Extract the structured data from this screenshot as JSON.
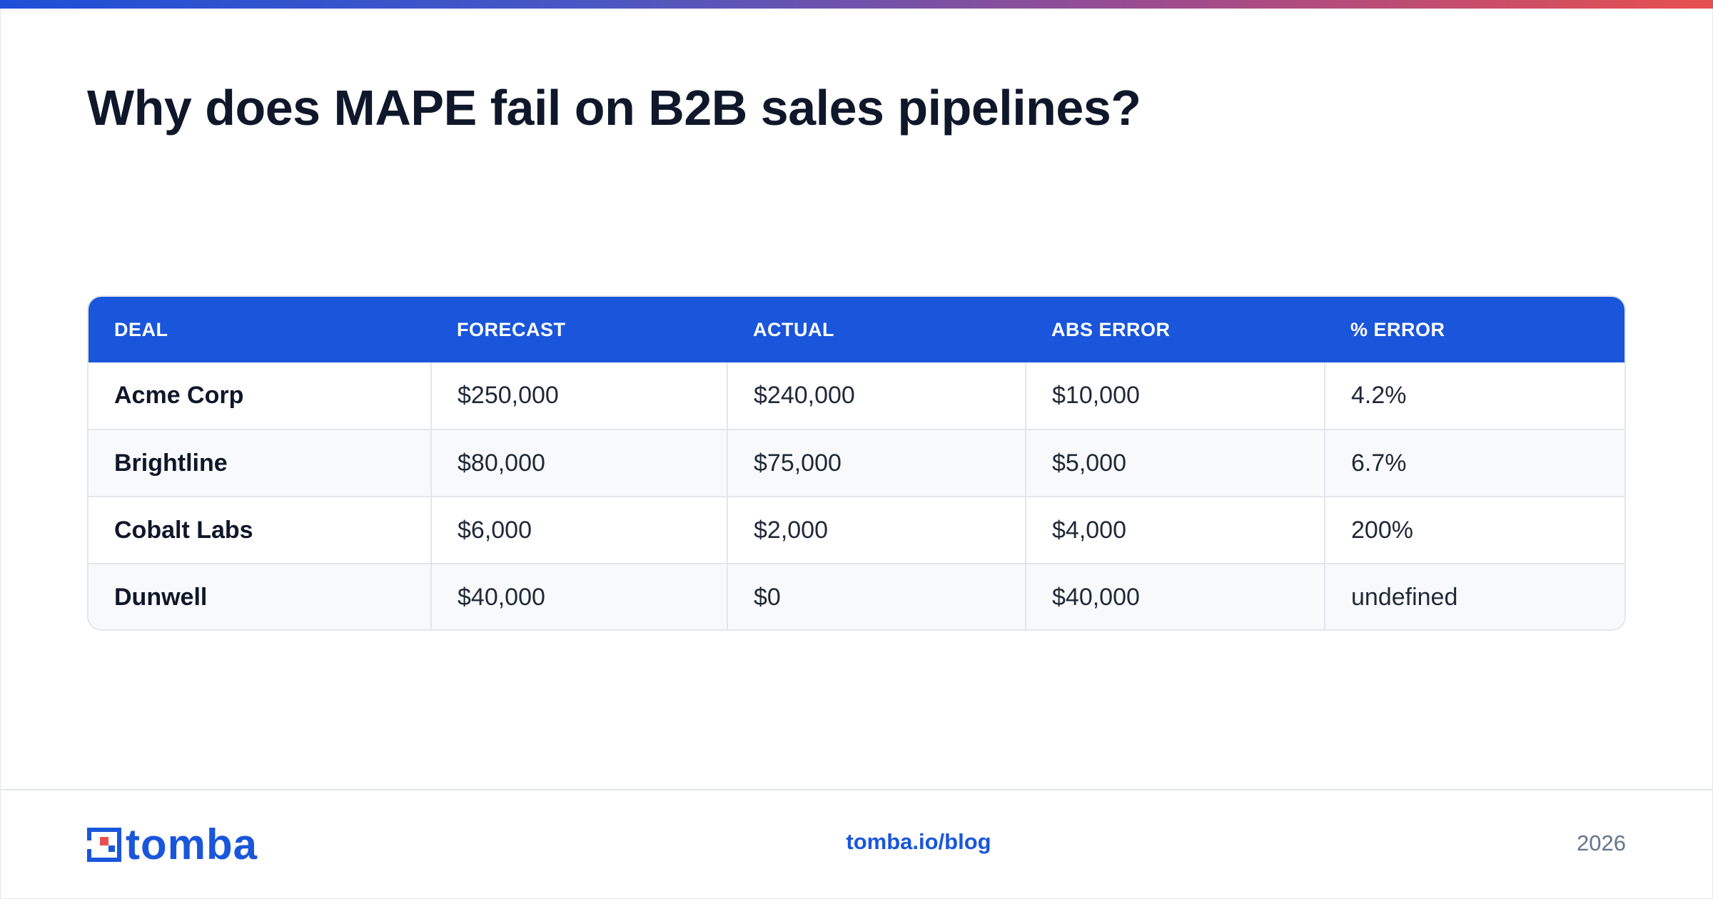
{
  "title": "Why does MAPE fail on B2B sales pipelines?",
  "table": {
    "headers": [
      "DEAL",
      "FORECAST",
      "ACTUAL",
      "ABS ERROR",
      "% ERROR"
    ],
    "rows": [
      [
        "Acme Corp",
        "$250,000",
        "$240,000",
        "$10,000",
        "4.2%"
      ],
      [
        "Brightline",
        "$80,000",
        "$75,000",
        "$5,000",
        "6.7%"
      ],
      [
        "Cobalt Labs",
        "$6,000",
        "$2,000",
        "$4,000",
        "200%"
      ],
      [
        "Dunwell",
        "$40,000",
        "$0",
        "$40,000",
        "undefined"
      ]
    ]
  },
  "footer": {
    "logo_text": "tomba",
    "logo_icon": "tomba-logo-icon",
    "link": "tomba.io/blog",
    "year": "2026"
  },
  "colors": {
    "brand": "#1a56db",
    "accent_red": "#e8504f",
    "title": "#0f172a"
  }
}
